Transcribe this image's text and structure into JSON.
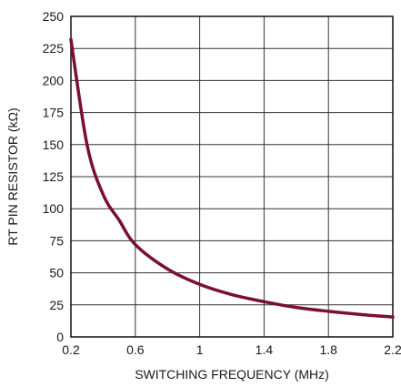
{
  "chart_data": {
    "type": "line",
    "title": "",
    "xlabel": "SWITCHING FREQUENCY (MHz)",
    "ylabel": "RT PIN RESISTOR (kΩ)",
    "xlim": [
      0.2,
      2.2
    ],
    "ylim": [
      0,
      250
    ],
    "xticks": [
      0.2,
      0.6,
      1,
      1.4,
      1.8,
      2.2
    ],
    "xtick_labels": [
      "0.2",
      "0.6",
      "1",
      "1.4",
      "1.8",
      "2.2"
    ],
    "x_gridlines": [
      0.2,
      0.6,
      1.0,
      1.4,
      1.8,
      2.2
    ],
    "yticks": [
      0,
      25,
      50,
      75,
      100,
      125,
      150,
      175,
      200,
      225,
      250
    ],
    "ytick_labels": [
      "0",
      "25",
      "50",
      "75",
      "100",
      "125",
      "150",
      "175",
      "200",
      "225",
      "250"
    ],
    "grid": true,
    "line_color": "#7a1030",
    "series": [
      {
        "x": [
          0.2,
          0.3,
          0.4,
          0.5,
          0.6,
          0.8,
          1.0,
          1.2,
          1.4,
          1.6,
          1.8,
          2.0,
          2.2
        ],
        "y": [
          232,
          150,
          111,
          91,
          72,
          53,
          41,
          33,
          27.5,
          23,
          20,
          17.5,
          15.5
        ]
      }
    ]
  }
}
